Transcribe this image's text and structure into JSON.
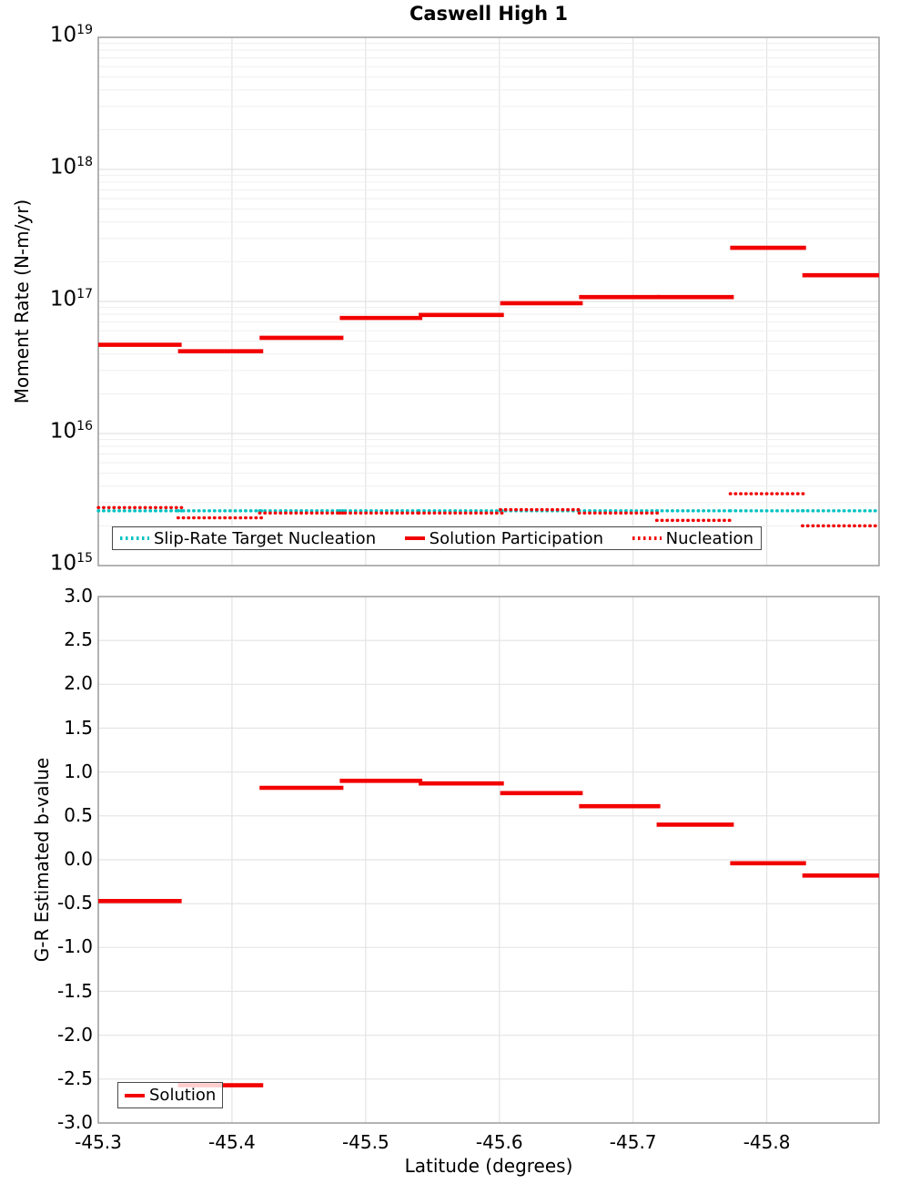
{
  "title": "Caswell High 1",
  "axes": {
    "moment_rate_ylabel": "Moment Rate (N-m/yr)",
    "b_value_ylabel": "G-R Estimated b-value",
    "xlabel": "Latitude (degrees)"
  },
  "colors": {
    "red": "#f20000",
    "cyan": "#00c2c2",
    "grid_minor": "#efefef",
    "grid_major": "#e2e2e2",
    "frame": "#9b9b9b",
    "legend_border": "#4a4a4a"
  },
  "chart_data": [
    {
      "type": "line",
      "panel": "moment_rate",
      "title": "Caswell High 1",
      "ylabel": "Moment Rate (N-m/yr)",
      "yscale": "log",
      "ylim": [
        1000000000000000.0,
        1e+19
      ],
      "ytick_exponents": [
        19,
        18,
        17,
        16,
        15
      ],
      "xlim": [
        -45.3,
        -45.884
      ],
      "xticks": [
        -45.3,
        -45.4,
        -45.5,
        -45.6,
        -45.7,
        -45.8
      ],
      "grid": true,
      "legend_position": "lower left",
      "bin_edges_latitude": [
        -45.3,
        -45.361,
        -45.422,
        -45.482,
        -45.541,
        -45.602,
        -45.661,
        -45.719,
        -45.774,
        -45.828,
        -45.884
      ],
      "series": [
        {
          "name": "Slip-Rate Target Nucleation",
          "color": "#00c2c2",
          "line_style": "dotted",
          "values": [
            2600000000000000.0,
            2600000000000000.0,
            2600000000000000.0,
            2600000000000000.0,
            2600000000000000.0,
            2600000000000000.0,
            2600000000000000.0,
            2600000000000000.0,
            2600000000000000.0,
            2600000000000000.0
          ]
        },
        {
          "name": "Solution Participation",
          "color": "#f20000",
          "line_style": "solid",
          "values": [
            4.7e+16,
            4.2e+16,
            5.3e+16,
            7.5e+16,
            7.9e+16,
            9.7e+16,
            1.08e+17,
            1.08e+17,
            2.55e+17,
            1.58e+17
          ]
        },
        {
          "name": "Nucleation",
          "color": "#f20000",
          "line_style": "dotted",
          "values": [
            2750000000000000.0,
            2300000000000000.0,
            2500000000000000.0,
            2500000000000000.0,
            2500000000000000.0,
            2650000000000000.0,
            2500000000000000.0,
            2200000000000000.0,
            3500000000000000.0,
            2000000000000000.0
          ]
        }
      ]
    },
    {
      "type": "line",
      "panel": "b_value",
      "ylabel": "G-R Estimated b-value",
      "xlabel": "Latitude (degrees)",
      "ylim": [
        -3.0,
        3.0
      ],
      "ytick_step": 0.5,
      "xlim": [
        -45.3,
        -45.884
      ],
      "xticks": [
        -45.3,
        -45.4,
        -45.5,
        -45.6,
        -45.7,
        -45.8
      ],
      "grid": true,
      "legend_position": "lower left",
      "bin_edges_latitude": [
        -45.3,
        -45.361,
        -45.422,
        -45.482,
        -45.541,
        -45.602,
        -45.661,
        -45.719,
        -45.774,
        -45.828,
        -45.884
      ],
      "series": [
        {
          "name": "Solution",
          "color": "#f20000",
          "line_style": "solid",
          "values": [
            -0.47,
            -2.57,
            0.82,
            0.9,
            0.87,
            0.76,
            0.61,
            0.4,
            -0.04,
            -0.18
          ]
        }
      ]
    }
  ]
}
